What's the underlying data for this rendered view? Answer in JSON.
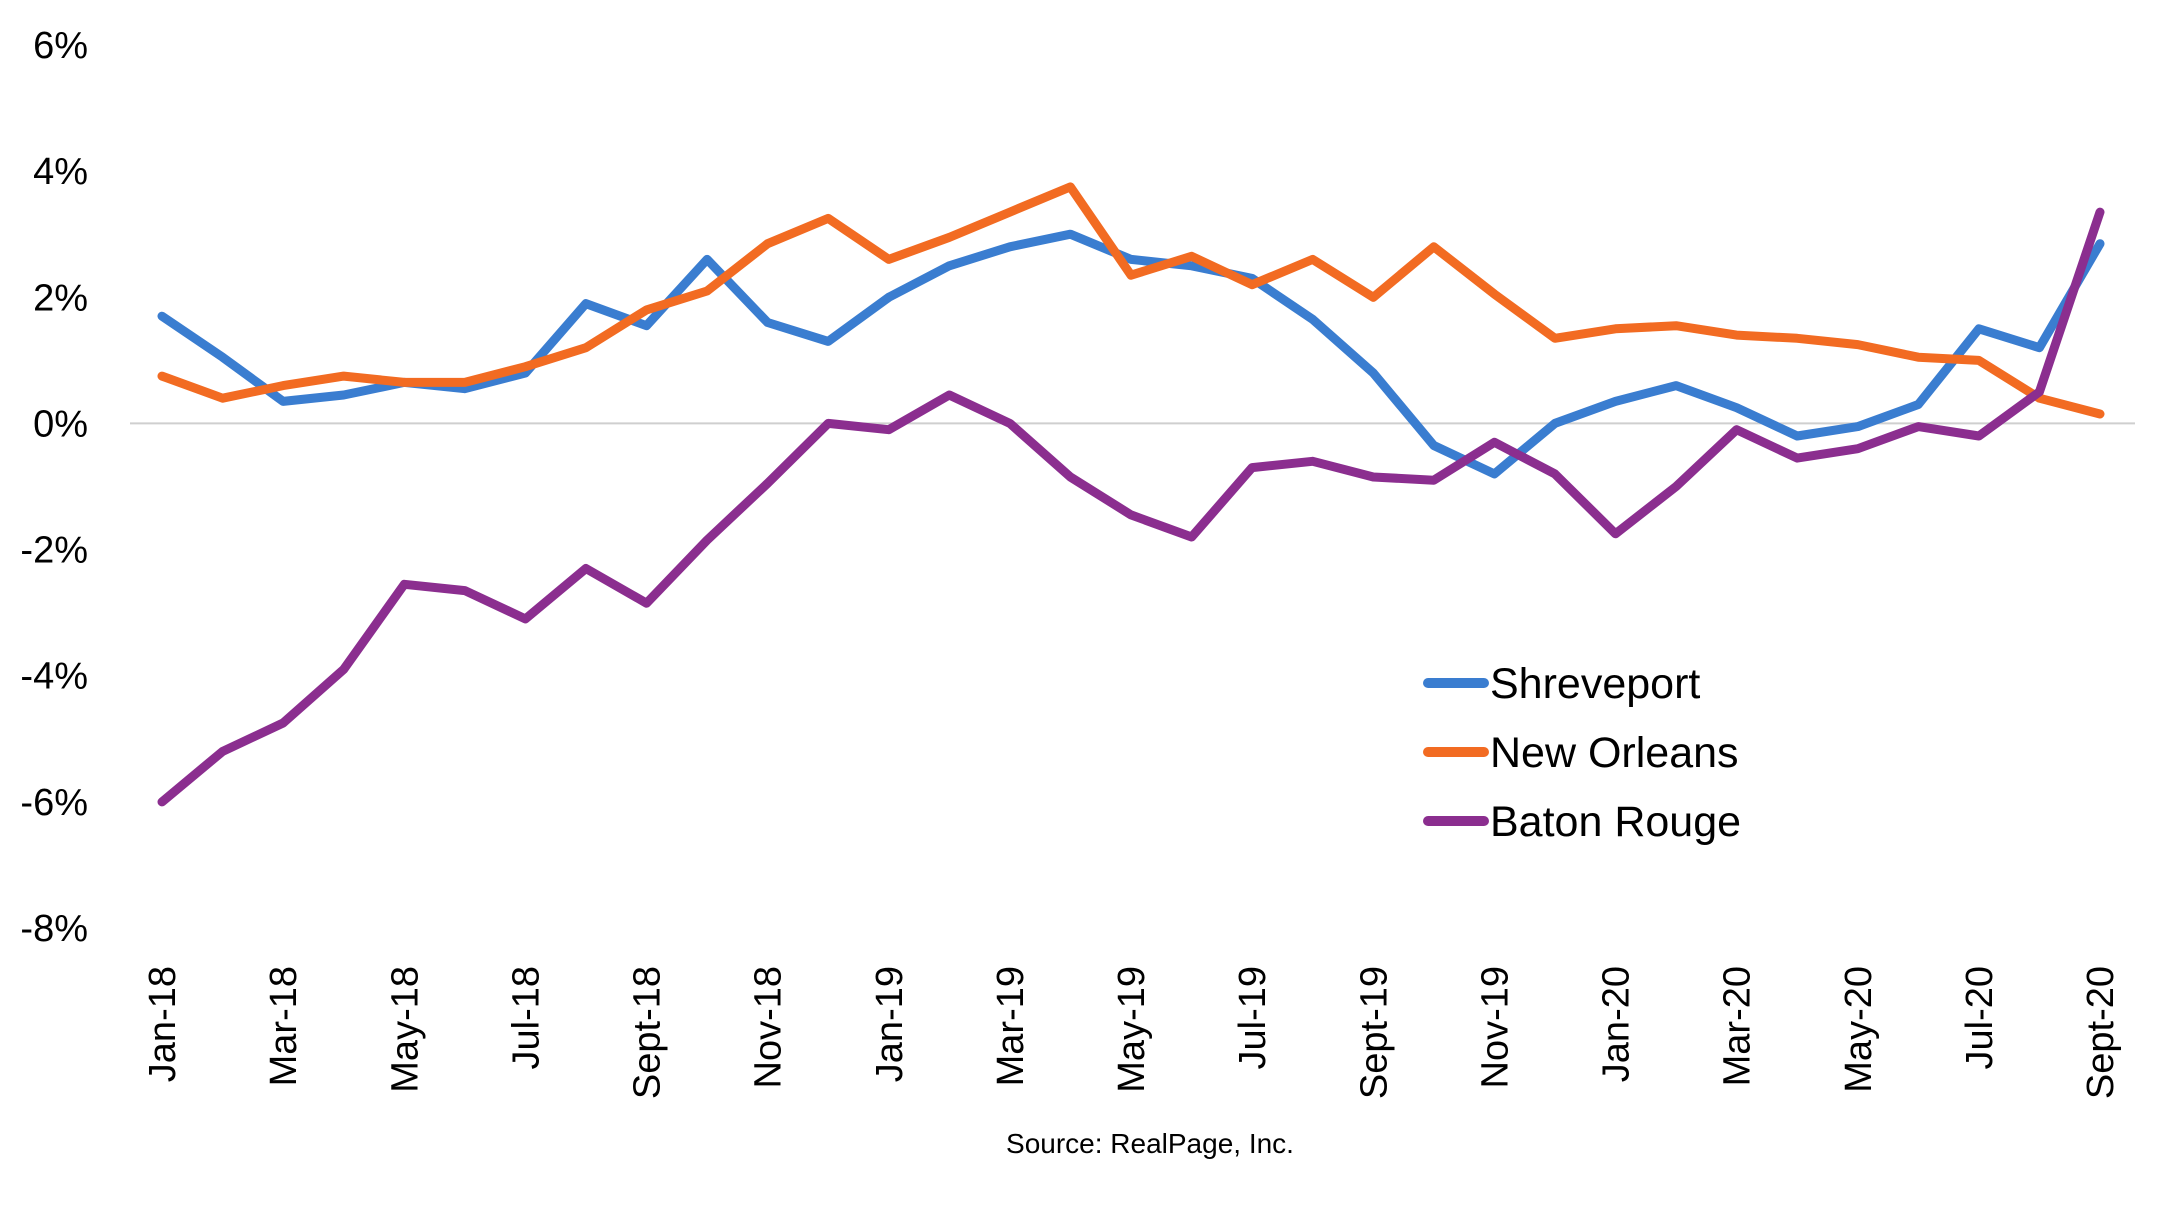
{
  "chart_data": {
    "type": "line",
    "title": "",
    "xlabel": "",
    "ylabel": "",
    "ylim": [
      -8,
      6
    ],
    "yticks": [
      6,
      4,
      2,
      0,
      -2,
      -4,
      -6,
      -8
    ],
    "ytick_labels": [
      "6%",
      "4%",
      "2%",
      "0%",
      "-2%",
      "-4%",
      "-6%",
      "-8%"
    ],
    "x": [
      "Jan-18",
      "Feb-18",
      "Mar-18",
      "Apr-18",
      "May-18",
      "Jun-18",
      "Jul-18",
      "Aug-18",
      "Sept-18",
      "Oct-18",
      "Nov-18",
      "Dec-18",
      "Jan-19",
      "Feb-19",
      "Mar-19",
      "Apr-19",
      "May-19",
      "Jun-19",
      "Jul-19",
      "Aug-19",
      "Sept-19",
      "Oct-19",
      "Nov-19",
      "Dec-19",
      "Jan-20",
      "Feb-20",
      "Mar-20",
      "Apr-20",
      "May-20",
      "Jun-20",
      "Jul-20",
      "Aug-20",
      "Sept-20"
    ],
    "xtick_labels": [
      "Jan-18",
      "Mar-18",
      "May-18",
      "Jul-18",
      "Sept-18",
      "Nov-18",
      "Jan-19",
      "Mar-19",
      "May-19",
      "Jul-19",
      "Sept-19",
      "Nov-19",
      "Jan-20",
      "Mar-20",
      "May-20",
      "Jul-20",
      "Sept-20"
    ],
    "grid": false,
    "zero_line": true,
    "legend_position": "lower-right",
    "series": [
      {
        "name": "Shreveport",
        "color": "#3a7dd0",
        "values": [
          1.7,
          1.05,
          0.35,
          0.45,
          0.65,
          0.55,
          0.8,
          1.9,
          1.55,
          2.6,
          1.6,
          1.3,
          2.0,
          2.5,
          2.8,
          3.0,
          2.6,
          2.5,
          2.3,
          1.65,
          0.8,
          -0.35,
          -0.8,
          0.0,
          0.35,
          0.6,
          0.25,
          -0.2,
          -0.05,
          0.3,
          1.5,
          1.2,
          2.85
        ]
      },
      {
        "name": "New Orleans",
        "color": "#f26b22",
        "values": [
          0.75,
          0.4,
          0.6,
          0.75,
          0.65,
          0.65,
          0.9,
          1.2,
          1.8,
          2.1,
          2.85,
          3.25,
          2.6,
          2.95,
          3.35,
          3.75,
          2.35,
          2.65,
          2.2,
          2.6,
          2.0,
          2.8,
          2.05,
          1.35,
          1.5,
          1.55,
          1.4,
          1.35,
          1.25,
          1.05,
          1.0,
          0.4,
          0.15
        ]
      },
      {
        "name": "Baton Rouge",
        "color": "#8b2e8f",
        "values": [
          -6.0,
          -5.2,
          -4.75,
          -3.9,
          -2.55,
          -2.65,
          -3.1,
          -2.3,
          -2.85,
          -1.85,
          -0.95,
          0.0,
          -0.1,
          0.45,
          0.0,
          -0.85,
          -1.45,
          -1.8,
          -0.7,
          -0.6,
          -0.85,
          -0.9,
          -0.3,
          -0.8,
          -1.75,
          -1.0,
          -0.1,
          -0.55,
          -0.4,
          -0.05,
          -0.2,
          0.5,
          3.35
        ]
      }
    ],
    "source": "Source: RealPage, Inc."
  }
}
